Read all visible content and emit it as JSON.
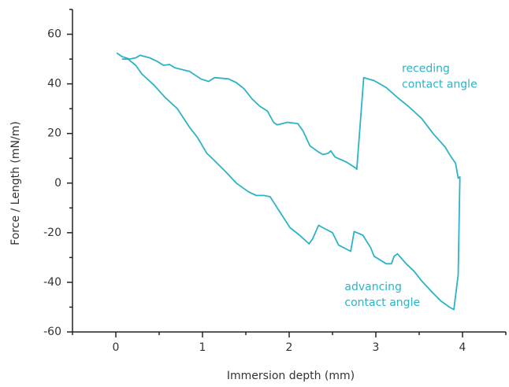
{
  "chart_data": {
    "type": "line",
    "x_label": "Immersion depth (mm)",
    "y_label": "Force / Length (mN/m)",
    "xlim": [
      -0.5,
      4.5
    ],
    "xticks": [
      0,
      1,
      2,
      3,
      4
    ],
    "xticks_minor": [
      -0.5,
      0.5,
      1.5,
      2.5,
      3.5,
      4.5
    ],
    "ylim": [
      -60,
      70
    ],
    "yticks": [
      -60,
      -40,
      -20,
      0,
      20,
      40,
      60
    ],
    "yticks_minor": [
      -50,
      -30,
      -10,
      10,
      30,
      50,
      70
    ],
    "grid": false,
    "annotations": [
      {
        "lines": [
          "receding",
          "contact angle"
        ],
        "x": 3.3,
        "y": 46
      },
      {
        "lines": [
          "advancing",
          "contact angle"
        ],
        "x": 2.64,
        "y": -42
      }
    ],
    "series": [
      {
        "color": "#2db3c7",
        "x": [
          0.01,
          0.07,
          0.16,
          0.23,
          0.28,
          0.39,
          0.48,
          0.55,
          0.62,
          0.68,
          0.85,
          0.98,
          1.07,
          1.14,
          1.3,
          1.39,
          1.48,
          1.57,
          1.66,
          1.75,
          1.82,
          1.86,
          1.98,
          2.1,
          2.16,
          2.24,
          2.34,
          2.39,
          2.45,
          2.48,
          2.53,
          2.66,
          2.77,
          2.78,
          2.86,
          2.98,
          3.12,
          3.25,
          3.39,
          3.53,
          3.66,
          3.8,
          3.86,
          3.92,
          3.95,
          3.97,
          3.95,
          3.9,
          3.85,
          3.75,
          3.65,
          3.53,
          3.44,
          3.35,
          3.25,
          3.21,
          3.18,
          3.12,
          2.98,
          2.94,
          2.85,
          2.75,
          2.71,
          2.57,
          2.5,
          2.39,
          2.34,
          2.27,
          2.23,
          2.12,
          2.01,
          1.89,
          1.78,
          1.71,
          1.62,
          1.53,
          1.39,
          1.27,
          1.14,
          1.05,
          0.94,
          0.85,
          0.71,
          0.57,
          0.44,
          0.3,
          0.23,
          0.14,
          0.07
        ],
        "values": [
          52.5,
          51,
          50,
          50.5,
          51.5,
          50.5,
          49,
          47.5,
          47.8,
          46.5,
          45,
          42,
          41,
          42.5,
          42,
          40.5,
          38,
          34,
          31,
          29,
          24.5,
          23.5,
          24.5,
          24,
          21,
          15,
          12.5,
          11.5,
          12,
          13,
          10.5,
          8.5,
          6,
          5.5,
          42.5,
          41.3,
          38.5,
          34.5,
          30.5,
          26,
          20,
          14.5,
          11,
          8,
          2,
          2.5,
          -37,
          -51,
          -50,
          -47.5,
          -44,
          -39.5,
          -35.5,
          -32.5,
          -28.5,
          -29.5,
          -32.5,
          -32.5,
          -29.5,
          -26,
          -21,
          -19.5,
          -27.5,
          -25,
          -20,
          -18,
          -17,
          -22.5,
          -24.5,
          -21,
          -18,
          -11.5,
          -5.5,
          -5,
          -5,
          -3.5,
          0,
          4.5,
          9,
          12,
          18.5,
          22.5,
          30,
          34.5,
          39.5,
          44,
          47.5,
          50,
          50
        ]
      }
    ]
  }
}
